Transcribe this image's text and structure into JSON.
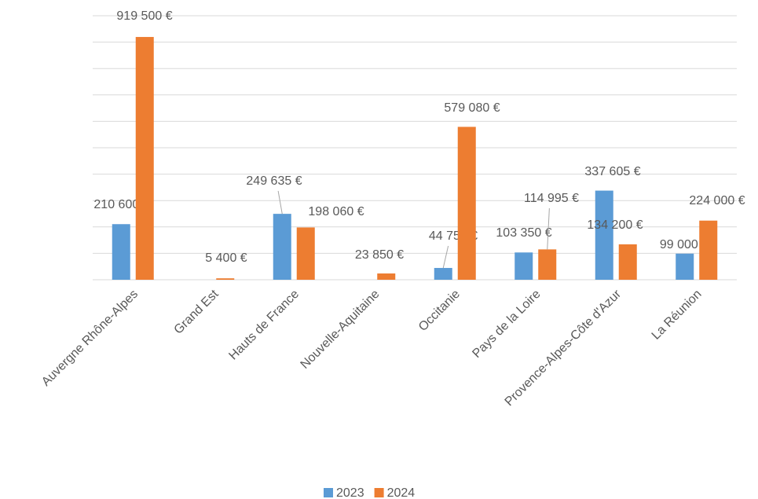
{
  "chart_data": {
    "type": "bar",
    "categories": [
      "Auvergne Rhône-Alpes",
      "Grand Est",
      "Hauts de France",
      "Nouvelle-Aquitaine",
      "Occitanie",
      "Pays de la Loire",
      "Provence-Alpes-Côte d'Azur",
      "La Réunion"
    ],
    "series": [
      {
        "name": "2023",
        "color": "#5b9bd5",
        "values": [
          210600,
          null,
          249635,
          null,
          44750,
          103350,
          337605,
          99000
        ],
        "value_labels": [
          "210 600 €",
          null,
          "249 635 €",
          null,
          "44 750 €",
          "103 350 €",
          "337 605 €",
          "99 000 €"
        ]
      },
      {
        "name": "2024",
        "color": "#ed7d31",
        "values": [
          919500,
          5400,
          198060,
          23850,
          579080,
          114995,
          134200,
          224000
        ],
        "value_labels": [
          "919 500 €",
          "5 400 €",
          "198 060 €",
          "23 850 €",
          "579 080 €",
          "114 995 €",
          "134 200 €",
          "224 000 €"
        ]
      }
    ],
    "ylim": [
      0,
      1000000
    ],
    "yticks": [
      0,
      100000,
      200000,
      300000,
      400000,
      500000,
      600000,
      700000,
      800000,
      900000,
      1000000
    ],
    "grid": true,
    "legend": "bottom"
  }
}
